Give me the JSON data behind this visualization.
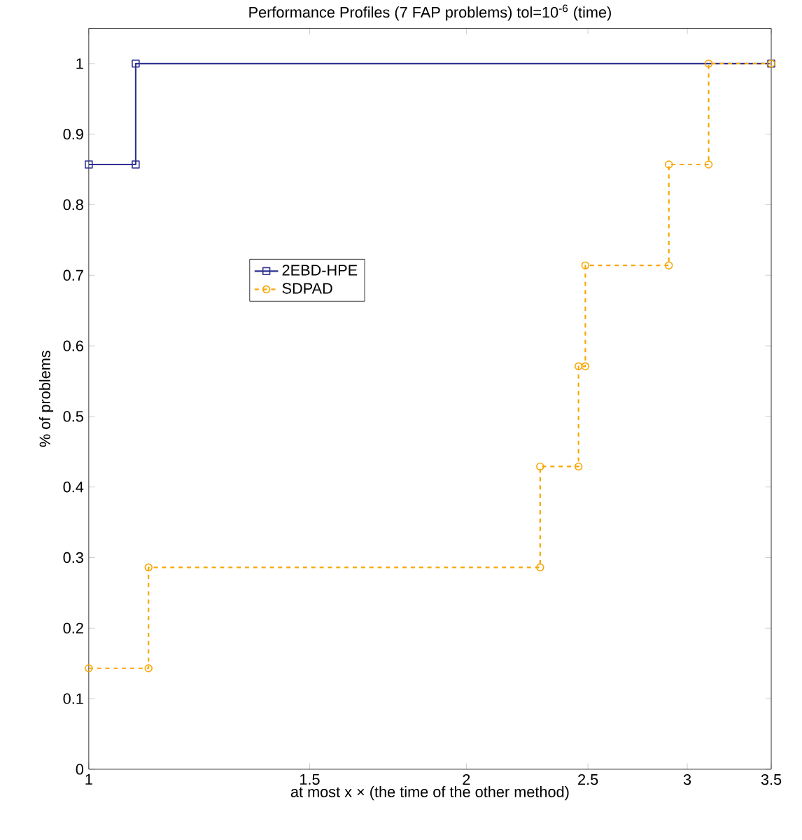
{
  "chart_data": {
    "type": "step",
    "title": "Performance Profiles (7 FAP problems) tol=10$^{-6}$ (time)",
    "xlabel": "at most  x × (the time of the other method)",
    "ylabel": "% of problems",
    "log": "x",
    "xlim": [
      1,
      3.5
    ],
    "ylim": [
      0,
      1.05
    ],
    "xticks": [
      1,
      1.5,
      2,
      2.5,
      3,
      3.5
    ],
    "yticks": [
      0,
      0.1,
      0.2,
      0.3,
      0.4,
      0.5,
      0.6,
      0.7,
      0.8,
      0.9,
      1
    ],
    "grid": false,
    "legend": "left",
    "series": [
      {
        "name": "2EBD-HPE",
        "color": "#2e3192",
        "marker": "square",
        "line_style": "solid",
        "x": [
          1,
          1.09,
          1.09,
          3.5
        ],
        "values": [
          0.857,
          0.857,
          1,
          1
        ]
      },
      {
        "name": "SDPAD",
        "color": "#f7a600",
        "marker": "circle",
        "line_style": "dashed",
        "x": [
          1,
          1.116,
          1.116,
          2.29,
          2.29,
          2.457,
          2.457,
          2.488,
          2.488,
          2.9,
          2.9,
          3.12,
          3.12,
          3.5
        ],
        "values": [
          0.143,
          0.143,
          0.286,
          0.286,
          0.429,
          0.429,
          0.571,
          0.571,
          0.714,
          0.714,
          0.857,
          0.857,
          1,
          1
        ]
      }
    ]
  }
}
